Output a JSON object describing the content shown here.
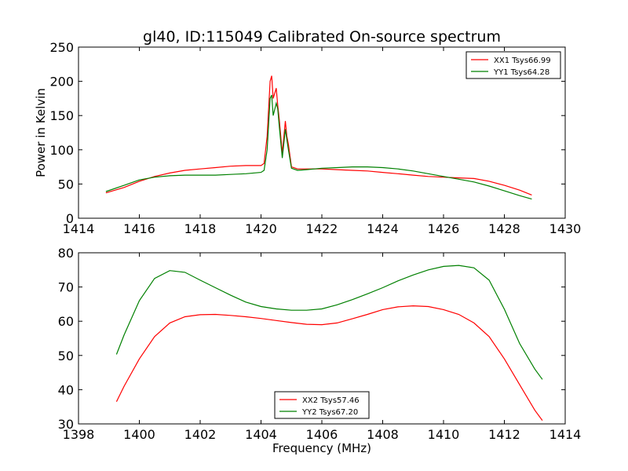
{
  "chart_data": [
    {
      "type": "line",
      "title": "gl40, ID:115049 Calibrated On-source spectrum",
      "xlabel": "",
      "ylabel": "Power in Kelvin",
      "xlim": [
        1414,
        1430
      ],
      "ylim": [
        0,
        250
      ],
      "xticks": [
        "1414",
        "1416",
        "1418",
        "1420",
        "1422",
        "1424",
        "1426",
        "1428",
        "1430"
      ],
      "yticks": [
        "0",
        "50",
        "100",
        "150",
        "200",
        "250"
      ],
      "legend_position": "upper right",
      "series": [
        {
          "name": "XX1 Tsys66.99",
          "color": "#ff0000",
          "x": [
            1414.9,
            1415.5,
            1416.0,
            1416.5,
            1417.0,
            1417.5,
            1418.0,
            1418.5,
            1419.0,
            1419.5,
            1420.0,
            1420.1,
            1420.2,
            1420.3,
            1420.35,
            1420.4,
            1420.5,
            1420.55,
            1420.6,
            1420.7,
            1420.8,
            1420.85,
            1420.9,
            1421.0,
            1421.2,
            1421.5,
            1422.0,
            1422.5,
            1423.0,
            1423.5,
            1424.0,
            1424.5,
            1425.0,
            1425.5,
            1426.0,
            1426.5,
            1427.0,
            1427.5,
            1428.0,
            1428.5,
            1428.9
          ],
          "y": [
            37,
            45,
            54,
            61,
            66,
            70,
            72,
            74,
            76,
            77,
            77,
            80,
            120,
            200,
            208,
            175,
            190,
            165,
            145,
            95,
            142,
            120,
            108,
            75,
            72,
            72,
            72,
            71,
            70,
            69,
            67,
            65,
            63,
            61,
            60,
            59,
            58,
            54,
            48,
            41,
            34
          ]
        },
        {
          "name": "YY1 Tsys64.28",
          "color": "#008000",
          "x": [
            1414.9,
            1415.5,
            1416.0,
            1416.5,
            1417.0,
            1417.5,
            1418.0,
            1418.5,
            1419.0,
            1419.5,
            1420.0,
            1420.1,
            1420.2,
            1420.3,
            1420.35,
            1420.4,
            1420.5,
            1420.55,
            1420.6,
            1420.7,
            1420.8,
            1420.85,
            1420.9,
            1421.0,
            1421.2,
            1421.5,
            1422.0,
            1422.5,
            1423.0,
            1423.5,
            1424.0,
            1424.5,
            1425.0,
            1425.5,
            1426.0,
            1426.5,
            1427.0,
            1427.5,
            1428.0,
            1428.5,
            1428.9
          ],
          "y": [
            39,
            48,
            56,
            60,
            62,
            63,
            63,
            63,
            64,
            65,
            67,
            70,
            100,
            175,
            180,
            150,
            168,
            160,
            135,
            88,
            130,
            115,
            100,
            73,
            70,
            71,
            73,
            74,
            75,
            75,
            74,
            72,
            69,
            65,
            61,
            57,
            53,
            47,
            40,
            33,
            28
          ]
        }
      ]
    },
    {
      "type": "line",
      "title": "",
      "xlabel": "Frequency (MHz)",
      "ylabel": "",
      "xlim": [
        1398,
        1414
      ],
      "ylim": [
        30,
        80
      ],
      "xticks": [
        "1398",
        "1400",
        "1402",
        "1404",
        "1406",
        "1408",
        "1410",
        "1412",
        "1414"
      ],
      "yticks": [
        "30",
        "40",
        "50",
        "60",
        "70",
        "80"
      ],
      "legend_position": "lower center",
      "series": [
        {
          "name": "XX2 Tsys57.46",
          "color": "#ff0000",
          "x": [
            1399.25,
            1399.5,
            1400.0,
            1400.5,
            1401.0,
            1401.5,
            1402.0,
            1402.5,
            1403.0,
            1403.5,
            1404.0,
            1404.5,
            1405.0,
            1405.5,
            1406.0,
            1406.5,
            1407.0,
            1407.5,
            1408.0,
            1408.5,
            1409.0,
            1409.5,
            1410.0,
            1410.5,
            1411.0,
            1411.5,
            1412.0,
            1412.5,
            1413.0,
            1413.25
          ],
          "y": [
            36.5,
            41,
            49,
            55.5,
            59.5,
            61.3,
            61.9,
            62.0,
            61.7,
            61.3,
            60.8,
            60.2,
            59.6,
            59.1,
            59.0,
            59.5,
            60.7,
            62.0,
            63.4,
            64.2,
            64.5,
            64.3,
            63.4,
            62.0,
            59.5,
            55.5,
            49,
            41.5,
            34,
            31
          ]
        },
        {
          "name": "YY2 Tsys67.20",
          "color": "#008000",
          "x": [
            1399.25,
            1399.5,
            1400.0,
            1400.5,
            1401.0,
            1401.5,
            1402.0,
            1402.5,
            1403.0,
            1403.5,
            1404.0,
            1404.5,
            1405.0,
            1405.5,
            1406.0,
            1406.5,
            1407.0,
            1407.5,
            1408.0,
            1408.5,
            1409.0,
            1409.5,
            1410.0,
            1410.5,
            1411.0,
            1411.5,
            1412.0,
            1412.5,
            1413.0,
            1413.25
          ],
          "y": [
            50.3,
            56,
            66,
            72.5,
            74.8,
            74.3,
            72.0,
            69.8,
            67.6,
            65.6,
            64.3,
            63.6,
            63.2,
            63.2,
            63.6,
            64.8,
            66.3,
            68.0,
            69.8,
            71.8,
            73.5,
            75.0,
            76.0,
            76.3,
            75.6,
            72.0,
            63.5,
            53.5,
            46,
            43
          ]
        }
      ]
    }
  ]
}
